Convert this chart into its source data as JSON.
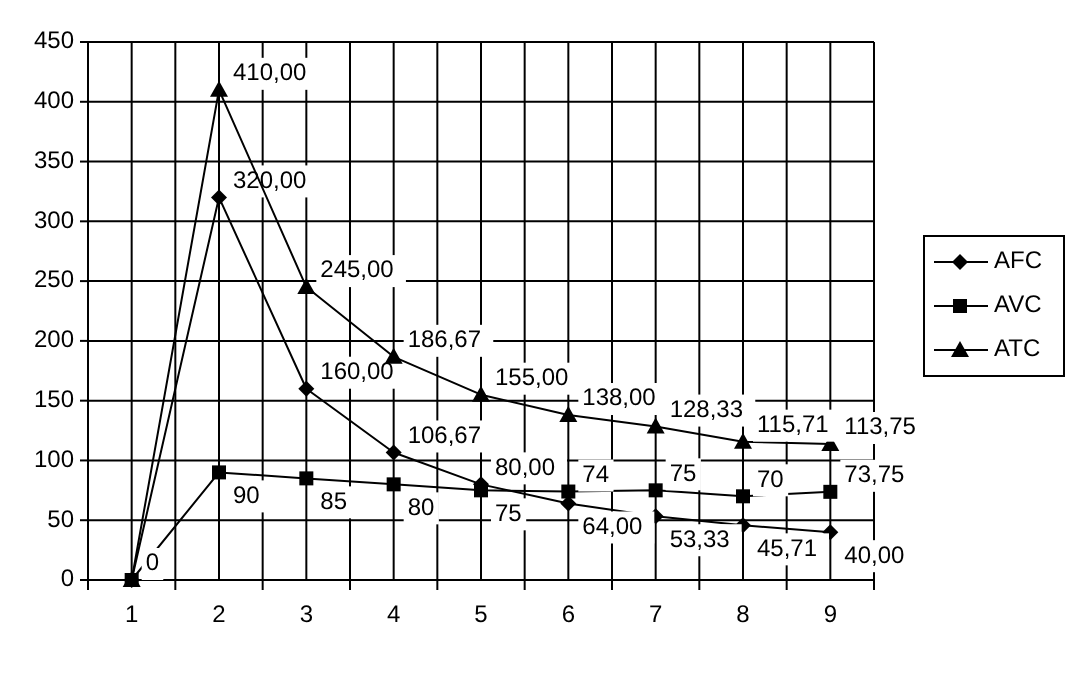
{
  "chart_data": {
    "type": "line",
    "categories": [
      "1",
      "2",
      "3",
      "4",
      "5",
      "6",
      "7",
      "8",
      "9"
    ],
    "ylim": [
      0,
      450
    ],
    "yticks": [
      0,
      50,
      100,
      150,
      200,
      250,
      300,
      350,
      400,
      450
    ],
    "grid": true,
    "legend": "right",
    "line_style": "solid",
    "series": [
      {
        "name": "AFC",
        "color": "#000000",
        "marker": "diamond",
        "values": [
          0,
          320,
          160,
          106.67,
          80,
          64,
          53.33,
          45.71,
          40
        ],
        "value_labels": [
          null,
          "320,00",
          "160,00",
          "106,67",
          "80,00",
          "64,00",
          "53,33",
          "45,71",
          "40,00"
        ]
      },
      {
        "name": "AVC",
        "color": "#000000",
        "marker": "square",
        "values": [
          0,
          90,
          85,
          80,
          75,
          74,
          75,
          70,
          73.75
        ],
        "value_labels": [
          "0",
          "90",
          "85",
          "80",
          "75",
          "74",
          "75",
          "70",
          "73,75"
        ]
      },
      {
        "name": "ATC",
        "color": "#000000",
        "marker": "triangle",
        "values": [
          0,
          410,
          245,
          186.67,
          155,
          138,
          128.33,
          115.71,
          113.75
        ],
        "value_labels": [
          null,
          "410,00",
          "245,00",
          "186,67",
          "155,00",
          "138,00",
          "128,33",
          "115,71",
          "113,75"
        ]
      }
    ]
  }
}
